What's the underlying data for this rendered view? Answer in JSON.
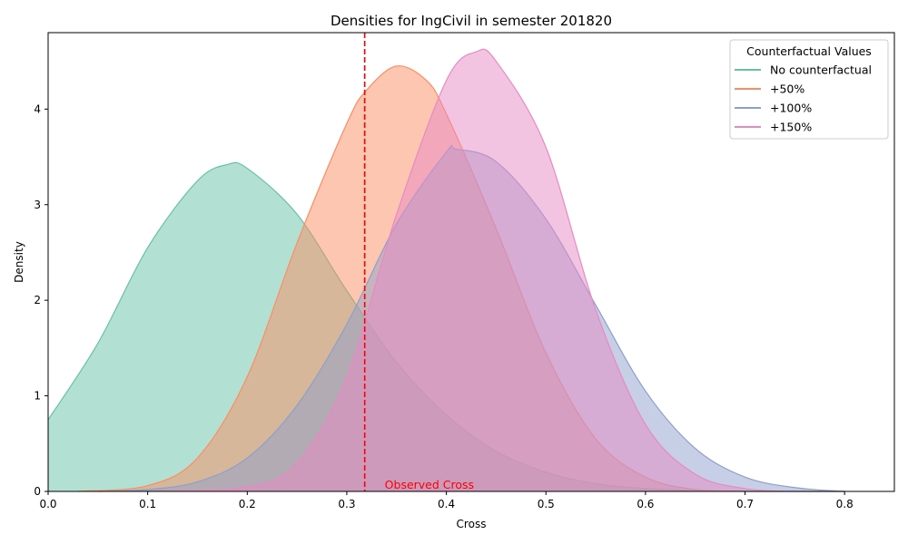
{
  "chart_data": {
    "type": "area",
    "title": "Densities for IngCivil in semester 201820",
    "xlabel": "Cross",
    "ylabel": "Density",
    "xlim": [
      0.0,
      0.85
    ],
    "ylim": [
      0.0,
      4.8
    ],
    "x_ticks": [
      "0.0",
      "0.1",
      "0.2",
      "0.3",
      "0.4",
      "0.5",
      "0.6",
      "0.7",
      "0.8"
    ],
    "y_ticks": [
      "0",
      "1",
      "2",
      "3",
      "4"
    ],
    "grid": false,
    "legend": {
      "title": "Counterfactual Values",
      "placement": "top-right"
    },
    "series": [
      {
        "name": "No counterfactual",
        "color": "#66c2a5",
        "x": [
          0.0,
          0.05,
          0.1,
          0.15,
          0.18,
          0.2,
          0.25,
          0.3,
          0.35,
          0.4,
          0.45,
          0.5,
          0.55,
          0.6,
          0.65,
          0.7,
          0.75,
          0.8
        ],
        "y": [
          0.75,
          1.55,
          2.55,
          3.25,
          3.42,
          3.38,
          2.9,
          2.1,
          1.35,
          0.8,
          0.42,
          0.2,
          0.08,
          0.03,
          0.01,
          0.0,
          0.0,
          0.0
        ]
      },
      {
        "name": "+50%",
        "color": "#fc8d62",
        "x": [
          0.03,
          0.1,
          0.15,
          0.2,
          0.25,
          0.3,
          0.32,
          0.35,
          0.38,
          0.4,
          0.45,
          0.5,
          0.55,
          0.6,
          0.65,
          0.7
        ],
        "y": [
          0.0,
          0.06,
          0.35,
          1.2,
          2.6,
          3.85,
          4.2,
          4.45,
          4.3,
          3.95,
          2.75,
          1.45,
          0.55,
          0.15,
          0.02,
          0.0
        ]
      },
      {
        "name": "+100%",
        "color": "#8da0cb",
        "x": [
          0.05,
          0.1,
          0.15,
          0.2,
          0.25,
          0.3,
          0.35,
          0.4,
          0.41,
          0.45,
          0.5,
          0.55,
          0.6,
          0.65,
          0.7,
          0.75,
          0.8
        ],
        "y": [
          0.0,
          0.02,
          0.1,
          0.35,
          0.9,
          1.75,
          2.8,
          3.55,
          3.58,
          3.45,
          2.85,
          1.95,
          1.05,
          0.45,
          0.15,
          0.04,
          0.0
        ]
      },
      {
        "name": "+150%",
        "color": "#e78ac3",
        "x": [
          0.1,
          0.2,
          0.25,
          0.3,
          0.35,
          0.4,
          0.43,
          0.45,
          0.5,
          0.55,
          0.6,
          0.65,
          0.7,
          0.75,
          0.8
        ],
        "y": [
          0.0,
          0.05,
          0.3,
          1.2,
          2.9,
          4.3,
          4.6,
          4.5,
          3.6,
          1.9,
          0.7,
          0.18,
          0.03,
          0.0,
          0.0
        ]
      }
    ],
    "vline": {
      "x": 0.318,
      "color": "#ff0000",
      "style": "dashed",
      "label": "Observed Cross"
    }
  }
}
